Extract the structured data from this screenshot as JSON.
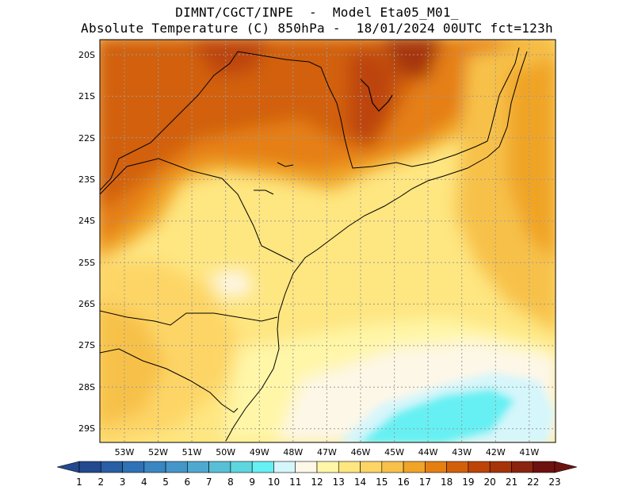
{
  "header": {
    "line1": "DIMNT/CGCT/INPE  -  Model Eta05_M01_",
    "line2": "Absolute Temperature (C) 850hPa -  18/01/2024 00UTC fct=123h"
  },
  "map": {
    "lat_labels": [
      "20S",
      "21S",
      "22S",
      "23S",
      "24S",
      "25S",
      "26S",
      "27S",
      "28S",
      "29S"
    ],
    "lon_labels": [
      "53W",
      "52W",
      "51W",
      "50W",
      "49W",
      "48W",
      "47W",
      "46W",
      "45W",
      "44W",
      "43W",
      "42W",
      "41W"
    ]
  },
  "colorbar": {
    "labels": [
      "1",
      "2",
      "3",
      "4",
      "5",
      "6",
      "7",
      "8",
      "9",
      "10",
      "11",
      "12",
      "13",
      "14",
      "15",
      "16",
      "17",
      "18",
      "19",
      "20",
      "21",
      "22",
      "23"
    ],
    "colors": [
      "#23498f",
      "#2a5ea5",
      "#2f72b5",
      "#3a86c2",
      "#4596c8",
      "#4fa8cf",
      "#58bfd6",
      "#5ed6e0",
      "#66f0f3",
      "#d5f6fb",
      "#fdf7e8",
      "#fff6a8",
      "#fee681",
      "#fdd566",
      "#f7c14a",
      "#f0a428",
      "#e57f12",
      "#d2600b",
      "#bd4407",
      "#a6340a",
      "#8b240f",
      "#6e1210"
    ]
  }
}
